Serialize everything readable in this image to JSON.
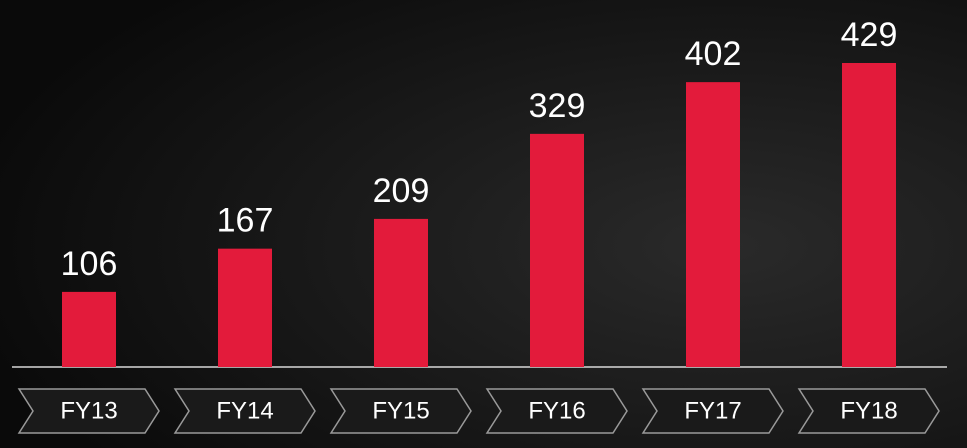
{
  "chart_data": {
    "type": "bar",
    "categories": [
      "FY13",
      "FY14",
      "FY15",
      "FY16",
      "FY17",
      "FY18"
    ],
    "values": [
      106,
      167,
      209,
      329,
      402,
      429
    ],
    "color": "#e31b3b"
  }
}
